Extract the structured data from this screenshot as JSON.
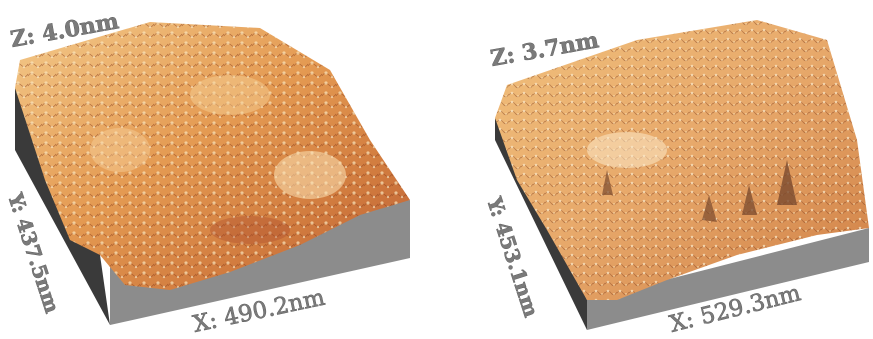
{
  "panels": [
    {
      "id": "left",
      "z_label": "Z: 4.0nm",
      "y_label": "Y: 437.5nm",
      "x_label": "X: 490.2nm"
    },
    {
      "id": "right",
      "z_label": "Z: 3.7nm",
      "y_label": "Y: 453.1nm",
      "x_label": "X: 529.3nm"
    }
  ],
  "colors": {
    "surface_light": "#f6d9a4",
    "surface_mid": "#e59a4c",
    "surface_dark": "#b9542a",
    "side_gray": "#8c8c8c",
    "side_dark": "#3a3a3a",
    "label_gray": "#7a7a7a"
  }
}
